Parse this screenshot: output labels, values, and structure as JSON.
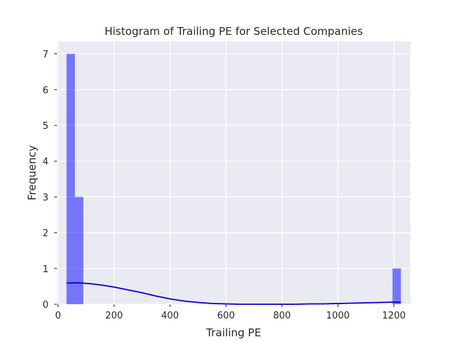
{
  "chart_data": {
    "type": "bar",
    "title": "Histogram of Trailing PE for Selected Companies",
    "xlabel": "Trailing PE",
    "ylabel": "Frequency",
    "xlim": [
      -4,
      1259
    ],
    "ylim": [
      0,
      7.35
    ],
    "xticks": [
      0,
      200,
      400,
      600,
      800,
      1000,
      1200
    ],
    "yticks": [
      0,
      1,
      2,
      3,
      4,
      5,
      6,
      7
    ],
    "grid": true,
    "bars": [
      {
        "x0": 30,
        "x1": 60,
        "value": 7
      },
      {
        "x0": 60,
        "x1": 90,
        "value": 3
      },
      {
        "x0": 1195,
        "x1": 1225,
        "value": 1
      }
    ],
    "kde": {
      "x": [
        30,
        60,
        90,
        120,
        160,
        200,
        250,
        300,
        350,
        400,
        450,
        500,
        550,
        600,
        650,
        700,
        750,
        800,
        850,
        900,
        950,
        1000,
        1050,
        1100,
        1150,
        1200,
        1225
      ],
      "y": [
        0.59,
        0.6,
        0.59,
        0.57,
        0.53,
        0.48,
        0.4,
        0.32,
        0.23,
        0.15,
        0.09,
        0.05,
        0.02,
        0.01,
        0.0,
        0.0,
        0.0,
        0.0,
        0.0,
        0.01,
        0.01,
        0.02,
        0.03,
        0.04,
        0.05,
        0.06,
        0.06
      ]
    },
    "colors": {
      "bar_fill": "#0000ff",
      "kde_line": "#0000d0",
      "plot_background": "#eaeaf2"
    }
  }
}
